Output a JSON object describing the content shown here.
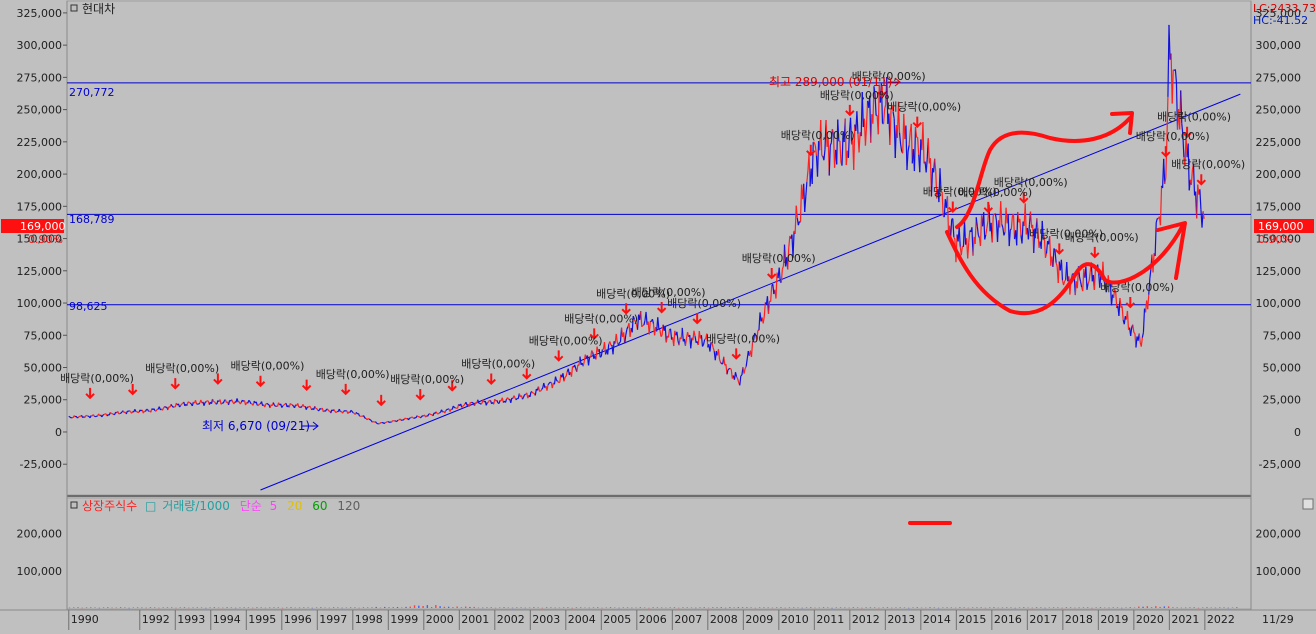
{
  "title": "현대차",
  "top_right": {
    "lc": "LC:2433.73",
    "hc": "HC:-41.52"
  },
  "price_badge": {
    "value": "169,000",
    "pct": "0.90%"
  },
  "hlines": [
    {
      "label": "270,772",
      "value": 270772
    },
    {
      "label": "168,789",
      "value": 168789
    },
    {
      "label": "98,625",
      "value": 98625
    }
  ],
  "annotations": {
    "high": "최고 289,000 (01/11)",
    "low": "최저 6,670 (09/21)"
  },
  "dividend_label": "배당락(0,00%)",
  "volume_legend": [
    {
      "text": "상장주식수",
      "color": "#ff2020"
    },
    {
      "text": "거래량/1000",
      "color": "#20a0a0"
    },
    {
      "text": "단순",
      "color": "#ff40ff"
    },
    {
      "text": "5",
      "color": "#ff40ff"
    },
    {
      "text": "20",
      "color": "#e0c000"
    },
    {
      "text": "60",
      "color": "#00a000"
    },
    {
      "text": "120",
      "color": "#606060"
    }
  ],
  "date_label": "11/29",
  "chart_data": [
    {
      "type": "line",
      "x": [
        1990,
        1992,
        1994,
        1996,
        1998,
        1998.7,
        2000,
        2001,
        2003,
        2005,
        2006,
        2008,
        2008.9,
        2010,
        2011,
        2012,
        2013,
        2014,
        2015,
        2017,
        2018,
        2019,
        2020.2,
        2020.9,
        2021,
        2021.5,
        2022
      ],
      "values": [
        11000,
        16000,
        24000,
        21000,
        15000,
        6670,
        12000,
        20000,
        28000,
        62000,
        85000,
        68000,
        40000,
        120000,
        210000,
        232000,
        248000,
        220000,
        150000,
        165000,
        120000,
        122000,
        70000,
        200000,
        289000,
        215000,
        169000
      ],
      "ylim": [
        -45000,
        335000
      ],
      "xlim": [
        1989.95,
        2023.3
      ],
      "y_ticks": [
        "325,000",
        "300,000",
        "275,000",
        "250,000",
        "225,000",
        "200,000",
        "175,000",
        "150,000",
        "125,000",
        "100,000",
        "75,000",
        "50,000",
        "25,000",
        "0",
        "-25,000"
      ],
      "x_ticks": [
        "1990",
        "1992",
        "1993",
        "1994",
        "1995",
        "1996",
        "1997",
        "1998",
        "1999",
        "2000",
        "2001",
        "2002",
        "2003",
        "2004",
        "2005",
        "2006",
        "2007",
        "2008",
        "2009",
        "2010",
        "2011",
        "2012",
        "2013",
        "2014",
        "2015",
        "2016",
        "2017",
        "2018",
        "2019",
        "2020",
        "2021",
        "2022"
      ],
      "horizontal_lines": [
        270772,
        168789,
        98625
      ],
      "trendline": [
        [
          1995.4,
          -45000
        ],
        [
          2023.0,
          262000
        ]
      ],
      "grid": false
    },
    {
      "type": "bar",
      "title": "상장주식수 거래량/1000 단순 5 20 60 120",
      "ylim": [
        0,
        290000
      ],
      "y_ticks": [
        "200,000",
        "100,000"
      ],
      "x": [
        1999,
        2000,
        2001,
        2008.5,
        2020.5
      ],
      "values": [
        3000,
        8000,
        4000,
        2500,
        5000
      ]
    }
  ]
}
